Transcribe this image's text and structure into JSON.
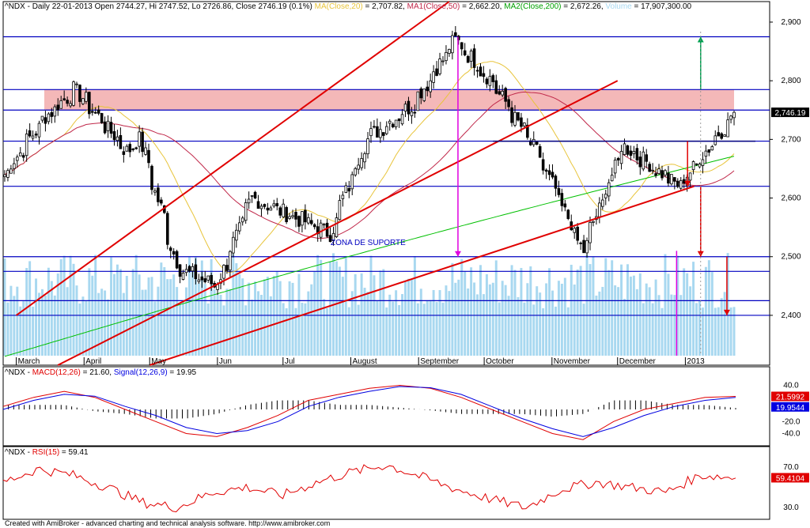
{
  "header": {
    "title": "^NDX - Daily 22-01-2013 Open 2744.27, Hi 2747.52, Lo 2726.86, Close 2746.19 (0.1%)",
    "ma20": "MA(Close,20)",
    "ma20_val": " = 2,707.82,",
    "ma50": "MA1(Close,50)",
    "ma50_val": " = 2,662.20,",
    "ma200": "MA2(Close,200)",
    "ma200_val": " = 2,672.26,",
    "volume": "Volume",
    "volume_val": " = 17,907,300.00"
  },
  "macd_header": {
    "prefix": "^NDX - ",
    "macd": "MACD(12,26)",
    "macd_val": " = 21.60, ",
    "signal": "Signal(12,26,9)",
    "signal_val": " = 19.95"
  },
  "rsi_header": {
    "prefix": "^NDX - ",
    "rsi": "RSI(15)",
    "rsi_val": " = 59.41"
  },
  "annotation": "ZONA DE SUPORTE",
  "footer": "Created with AmiBroker - advanced charting and technical analysis software. http://www.amibroker.com",
  "colors": {
    "ma20": "#e8c43a",
    "ma50": "#c0284a",
    "ma200": "#00c000",
    "volume": "#a8d8f0",
    "hline": "#0000c0",
    "trend": "#e00000",
    "zone": "#f4b8b8",
    "macd": "#e00000",
    "signal": "#0000e0",
    "rsi": "#e00000",
    "magenta": "#e000e0",
    "green_arrow": "#00a050"
  },
  "chart_data": [
    {
      "type": "candlestick",
      "name": "price",
      "y_ticks": [
        2400,
        2500,
        2600,
        2700,
        2800,
        2900
      ],
      "ylim": [
        2315,
        2935
      ],
      "x_labels": [
        "March",
        "April",
        "May",
        "Jun",
        "Jul",
        "August",
        "September",
        "October",
        "November",
        "December",
        "2013"
      ],
      "last_price_label": "2,746.19",
      "horizontal_lines": [
        2875,
        2785,
        2750,
        2697,
        2620,
        2500,
        2475,
        2425,
        2400
      ],
      "resistance_zone": [
        2750,
        2785
      ],
      "key_closes": [
        {
          "date": "2012-03-01",
          "close": 2640
        },
        {
          "date": "2012-03-20",
          "close": 2740
        },
        {
          "date": "2012-04-02",
          "close": 2785
        },
        {
          "date": "2012-04-25",
          "close": 2680
        },
        {
          "date": "2012-05-01",
          "close": 2700
        },
        {
          "date": "2012-05-18",
          "close": 2480
        },
        {
          "date": "2012-06-04",
          "close": 2450
        },
        {
          "date": "2012-06-20",
          "close": 2600
        },
        {
          "date": "2012-07-25",
          "close": 2540
        },
        {
          "date": "2012-08-10",
          "close": 2700
        },
        {
          "date": "2012-08-31",
          "close": 2760
        },
        {
          "date": "2012-09-19",
          "close": 2870
        },
        {
          "date": "2012-10-05",
          "close": 2800
        },
        {
          "date": "2012-10-25",
          "close": 2680
        },
        {
          "date": "2012-11-15",
          "close": 2510
        },
        {
          "date": "2012-12-03",
          "close": 2690
        },
        {
          "date": "2012-12-28",
          "close": 2620
        },
        {
          "date": "2013-01-22",
          "close": 2746.19
        }
      ]
    },
    {
      "type": "line",
      "name": "MACD",
      "y_ticks": [
        40.0,
        20.0,
        -20.0,
        -40.0
      ],
      "value_labels": [
        "21.5992",
        "19.9544"
      ],
      "series": [
        {
          "name": "MACD(12,26)",
          "values": [
            5,
            20,
            30,
            20,
            0,
            -20,
            -40,
            -45,
            -30,
            -10,
            15,
            25,
            35,
            40,
            35,
            20,
            0,
            -20,
            -40,
            -50,
            -20,
            0,
            10,
            20,
            21.6
          ]
        },
        {
          "name": "Signal(12,26,9)",
          "values": [
            0,
            15,
            25,
            22,
            5,
            -10,
            -30,
            -40,
            -35,
            -20,
            5,
            20,
            30,
            38,
            36,
            25,
            5,
            -15,
            -32,
            -45,
            -30,
            -10,
            5,
            15,
            19.95
          ]
        }
      ]
    },
    {
      "type": "line",
      "name": "RSI",
      "y_ticks": [
        70.0,
        30.0
      ],
      "value_labels": [
        "59.4104"
      ],
      "series": [
        {
          "name": "RSI(15)",
          "values": [
            55,
            68,
            62,
            50,
            35,
            30,
            45,
            50,
            42,
            55,
            65,
            72,
            60,
            48,
            38,
            30,
            48,
            55,
            50,
            45,
            62,
            59.41
          ]
        }
      ]
    }
  ]
}
